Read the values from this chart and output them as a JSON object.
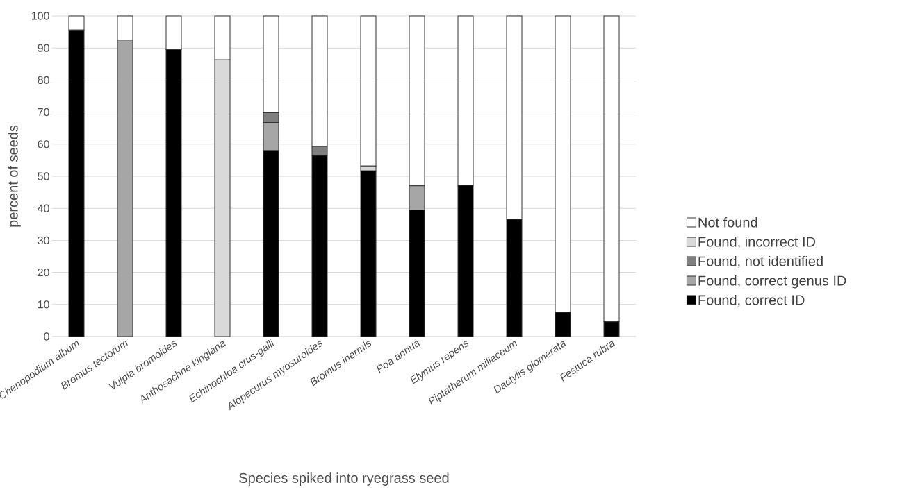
{
  "chart_data": {
    "type": "bar",
    "stacked": true,
    "xlabel": "Species spiked into ryegrass seed",
    "ylabel": "percent of seeds",
    "categories": [
      "Chenopodium album",
      "Bromus tectorum",
      "Vulpia bromoides",
      "Anthosachne kingiana",
      "Echinochloa crus-galli",
      "Alopecurus myosuroides",
      "Bromus inermis",
      "Poa annua",
      "Elymus repens",
      "Piptatherum miliaceum",
      "Dactylis glomerata",
      "Festuca rubra"
    ],
    "series": [
      {
        "name": "Found, correct ID",
        "color": "#000000",
        "values": [
          95.6,
          0,
          89.5,
          0,
          58,
          56.5,
          51.7,
          39.5,
          47.2,
          36.6,
          7.6,
          4.6
        ]
      },
      {
        "name": "Found, correct genus ID",
        "color": "#a6a6a6",
        "values": [
          0,
          92.5,
          0,
          0,
          8.8,
          0,
          0,
          7.5,
          0,
          0,
          0,
          0
        ]
      },
      {
        "name": "Found, not identified",
        "color": "#7f7f7f",
        "values": [
          0,
          0,
          0,
          0,
          3,
          2.8,
          0,
          0,
          0,
          0,
          0,
          0
        ]
      },
      {
        "name": "Found, incorrect ID",
        "color": "#d9d9d9",
        "values": [
          0,
          0,
          0,
          86.3,
          0,
          0,
          1.5,
          0,
          0,
          0,
          0,
          0
        ]
      },
      {
        "name": "Not found",
        "color": "#ffffff",
        "values": [
          4.4,
          7.5,
          10.5,
          13.7,
          30.2,
          40.7,
          46.8,
          53,
          52.8,
          63.4,
          92.4,
          95.4
        ]
      }
    ],
    "ylim": [
      0,
      100
    ],
    "yticks": [
      0,
      10,
      20,
      30,
      40,
      50,
      60,
      70,
      80,
      90,
      100
    ],
    "grid": "y",
    "legend": "right"
  }
}
